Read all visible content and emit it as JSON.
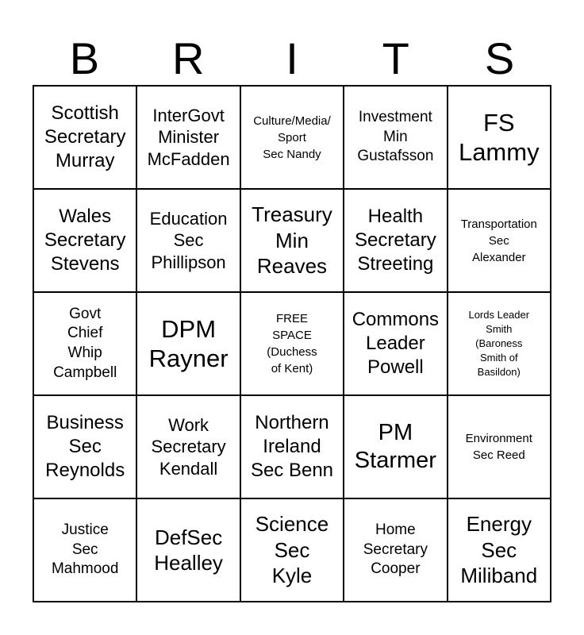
{
  "colors": {
    "background": "#ffffff",
    "text": "#000000",
    "grid_border": "#000000"
  },
  "header": {
    "letters": [
      "B",
      "R",
      "I",
      "T",
      "S"
    ]
  },
  "card": {
    "rows": [
      {
        "cells": [
          {
            "text": "Scottish\nSecretary\nMurray"
          },
          {
            "text": "InterGovt\nMinister\nMcFadden"
          },
          {
            "text": "Culture/Media/\nSport\nSec Nandy"
          },
          {
            "text": "Investment\nMin\nGustafsson"
          },
          {
            "text": "FS\nLammy"
          }
        ]
      },
      {
        "cells": [
          {
            "text": "Wales\nSecretary\nStevens"
          },
          {
            "text": "Education\nSec\nPhillipson"
          },
          {
            "text": "Treasury\nMin\nReaves"
          },
          {
            "text": "Health\nSecretary\nStreeting"
          },
          {
            "text": "Transportation\nSec\nAlexander"
          }
        ]
      },
      {
        "cells": [
          {
            "text": "Govt\nChief\nWhip\nCampbell"
          },
          {
            "text": "DPM\nRayner"
          },
          {
            "text": "FREE\nSPACE\n(Duchess\nof Kent)"
          },
          {
            "text": "Commons\nLeader\nPowell"
          },
          {
            "text": "Lords Leader\nSmith\n(Baroness\nSmith of\nBasildon)"
          }
        ]
      },
      {
        "cells": [
          {
            "text": "Business\nSec\nReynolds"
          },
          {
            "text": "Work\nSecretary\nKendall"
          },
          {
            "text": "Northern\nIreland\nSec Benn"
          },
          {
            "text": "PM\nStarmer"
          },
          {
            "text": "Environment\nSec Reed"
          }
        ]
      },
      {
        "cells": [
          {
            "text": "Justice\nSec\nMahmood"
          },
          {
            "text": "DefSec\nHealley"
          },
          {
            "text": "Science\nSec\nKyle"
          },
          {
            "text": "Home\nSecretary\nCooper"
          },
          {
            "text": "Energy\nSec\nMiliband"
          }
        ]
      }
    ]
  }
}
